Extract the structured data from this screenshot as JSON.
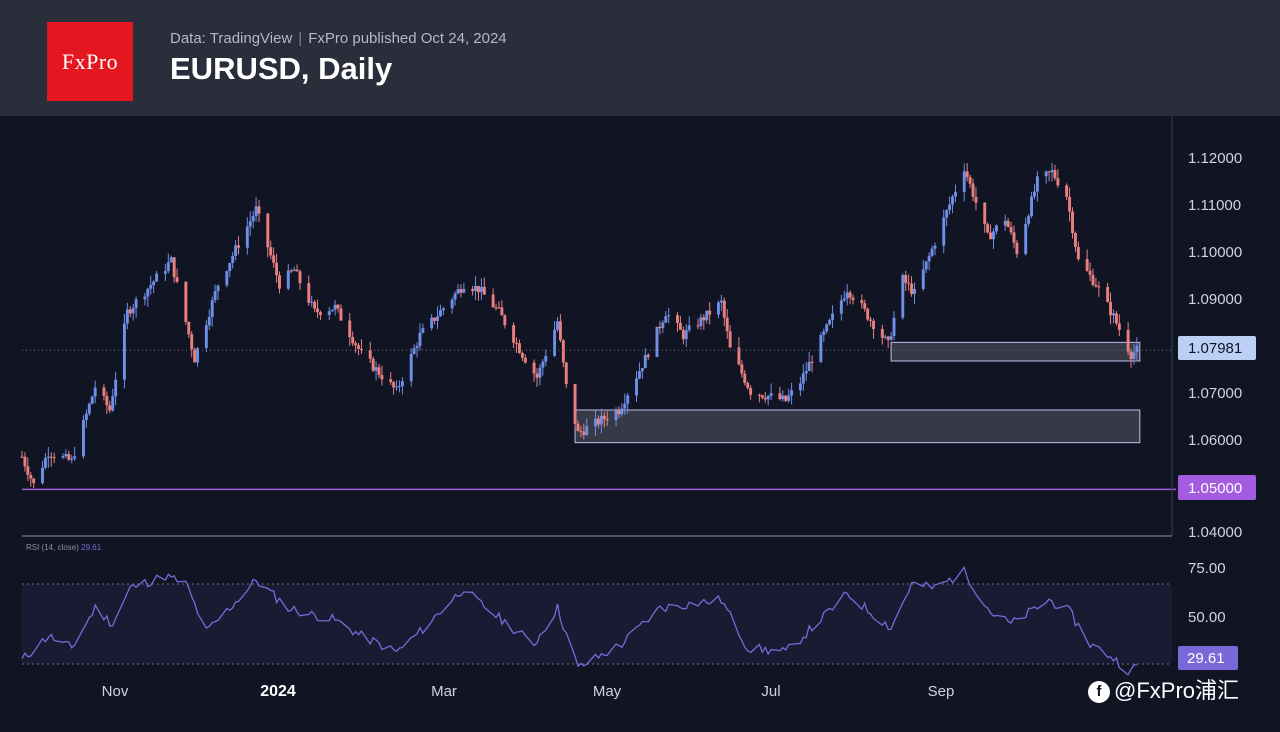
{
  "header": {
    "logo_text": "FxPro",
    "data_source": "Data: TradingView",
    "publisher": "FxPro published Oct 24, 2024",
    "title": "EURUSD, Daily"
  },
  "watermark": {
    "text": "@FxPro浦汇"
  },
  "colors": {
    "up": "#6f8fe6",
    "down": "#e98080",
    "zone": "#a35be0",
    "rsi_line": "#7a68d8",
    "current_price_badge": "#bcd0f5",
    "support_badge": "#a35be0"
  },
  "chart_data": [
    {
      "type": "candlestick",
      "title": "EURUSD, Daily",
      "ylim": [
        1.04,
        1.13
      ],
      "yticks": [
        "1.12000",
        "1.11000",
        "1.10000",
        "1.09000",
        "1.07000",
        "1.06000",
        "1.04000"
      ],
      "xticks": [
        "Nov",
        "2024",
        "Mar",
        "May",
        "Jul",
        "Sep"
      ],
      "x_range": [
        "2023-10-09",
        "2024-11-05"
      ],
      "grid": false,
      "current_price": {
        "label": "1.07981",
        "value": 1.07981
      },
      "support_line": {
        "label": "1.05000",
        "value": 1.05
      },
      "zones": [
        {
          "from": "2024-04-15",
          "to": "2024-10-25",
          "low": 1.06,
          "high": 1.067
        },
        {
          "from": "2024-08-01",
          "to": "2024-10-25",
          "low": 1.0775,
          "high": 1.0815
        }
      ],
      "anchors": [
        [
          "2023-10-09",
          1.057
        ],
        [
          "2023-10-13",
          1.051
        ],
        [
          "2023-10-18",
          1.058
        ],
        [
          "2023-10-26",
          1.056
        ],
        [
          "2023-11-03",
          1.072
        ],
        [
          "2023-11-08",
          1.067
        ],
        [
          "2023-11-14",
          1.088
        ],
        [
          "2023-11-29",
          1.099
        ],
        [
          "2023-12-07",
          1.078
        ],
        [
          "2023-12-15",
          1.094
        ],
        [
          "2023-12-28",
          1.11
        ],
        [
          "2024-01-05",
          1.094
        ],
        [
          "2024-01-10",
          1.097
        ],
        [
          "2024-01-17",
          1.088
        ],
        [
          "2024-01-24",
          1.089
        ],
        [
          "2024-02-02",
          1.079
        ],
        [
          "2024-02-14",
          1.071
        ],
        [
          "2024-02-22",
          1.083
        ],
        [
          "2024-03-08",
          1.094
        ],
        [
          "2024-03-13",
          1.093
        ],
        [
          "2024-03-20",
          1.088
        ],
        [
          "2024-03-28",
          1.079
        ],
        [
          "2024-04-02",
          1.074
        ],
        [
          "2024-04-09",
          1.086
        ],
        [
          "2024-04-12",
          1.072
        ],
        [
          "2024-04-16",
          1.062
        ],
        [
          "2024-04-30",
          1.067
        ],
        [
          "2024-05-09",
          1.078
        ],
        [
          "2024-05-16",
          1.088
        ],
        [
          "2024-05-22",
          1.083
        ],
        [
          "2024-06-04",
          1.09
        ],
        [
          "2024-06-07",
          1.08
        ],
        [
          "2024-06-14",
          1.071
        ],
        [
          "2024-06-26",
          1.069
        ],
        [
          "2024-07-01",
          1.073
        ],
        [
          "2024-07-08",
          1.082
        ],
        [
          "2024-07-17",
          1.093
        ],
        [
          "2024-07-22",
          1.089
        ],
        [
          "2024-07-31",
          1.081
        ],
        [
          "2024-08-05",
          1.095
        ],
        [
          "2024-08-09",
          1.092
        ],
        [
          "2024-08-16",
          1.103
        ],
        [
          "2024-08-26",
          1.119
        ],
        [
          "2024-09-03",
          1.104
        ],
        [
          "2024-09-09",
          1.108
        ],
        [
          "2024-09-13",
          1.101
        ],
        [
          "2024-09-20",
          1.116
        ],
        [
          "2024-09-25",
          1.118
        ],
        [
          "2024-09-30",
          1.113
        ],
        [
          "2024-10-04",
          1.099
        ],
        [
          "2024-10-10",
          1.094
        ],
        [
          "2024-10-16",
          1.087
        ],
        [
          "2024-10-22",
          1.079
        ],
        [
          "2024-10-24",
          1.0798
        ]
      ]
    },
    {
      "type": "line",
      "title": "RSI (14, close)",
      "value_label": "29.61",
      "ylim": [
        22,
        82
      ],
      "levels": [
        70,
        30
      ],
      "yticks": [
        "75.00",
        "50.00"
      ],
      "anchors": [
        [
          "2023-10-09",
          32
        ],
        [
          "2023-10-18",
          44
        ],
        [
          "2023-10-26",
          38
        ],
        [
          "2023-11-03",
          58
        ],
        [
          "2023-11-09",
          50
        ],
        [
          "2023-11-15",
          68
        ],
        [
          "2023-11-27",
          74
        ],
        [
          "2023-12-04",
          70
        ],
        [
          "2023-12-11",
          46
        ],
        [
          "2023-12-19",
          58
        ],
        [
          "2023-12-28",
          72
        ],
        [
          "2024-01-08",
          58
        ],
        [
          "2024-01-15",
          55
        ],
        [
          "2024-01-24",
          52
        ],
        [
          "2024-02-02",
          44
        ],
        [
          "2024-02-14",
          36
        ],
        [
          "2024-02-22",
          46
        ],
        [
          "2024-03-08",
          68
        ],
        [
          "2024-03-12",
          62
        ],
        [
          "2024-03-21",
          52
        ],
        [
          "2024-04-01",
          40
        ],
        [
          "2024-04-09",
          58
        ],
        [
          "2024-04-16",
          28
        ],
        [
          "2024-05-01",
          40
        ],
        [
          "2024-05-14",
          58
        ],
        [
          "2024-05-24",
          60
        ],
        [
          "2024-06-04",
          62
        ],
        [
          "2024-06-13",
          38
        ],
        [
          "2024-06-26",
          36
        ],
        [
          "2024-07-02",
          44
        ],
        [
          "2024-07-17",
          65
        ],
        [
          "2024-07-25",
          56
        ],
        [
          "2024-08-01",
          48
        ],
        [
          "2024-08-08",
          70
        ],
        [
          "2024-08-16",
          68
        ],
        [
          "2024-08-26",
          76
        ],
        [
          "2024-09-04",
          56
        ],
        [
          "2024-09-11",
          50
        ],
        [
          "2024-09-24",
          62
        ],
        [
          "2024-10-01",
          56
        ],
        [
          "2024-10-08",
          40
        ],
        [
          "2024-10-15",
          34
        ],
        [
          "2024-10-22",
          26
        ],
        [
          "2024-10-24",
          29.6
        ]
      ]
    }
  ]
}
